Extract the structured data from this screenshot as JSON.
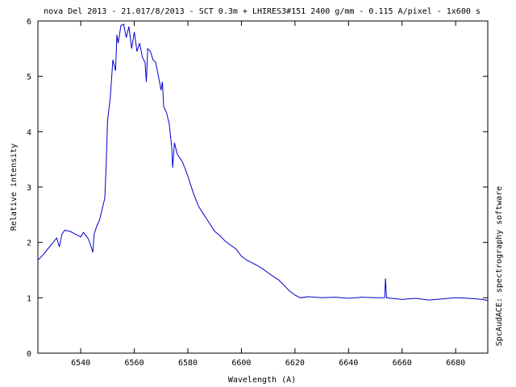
{
  "chart_data": {
    "type": "line",
    "title": "nova Del 2013 - 21.017/8/2013 - SCT 0.3m + LHIRES3#151 2400 g/mm - 0.115 A/pixel - 1x600 s",
    "xlabel": "Wavelength (A)",
    "ylabel": "Relative intensity",
    "side_label": "SpcAudACE: spectrography software",
    "xlim": [
      6524,
      6692
    ],
    "ylim": [
      0,
      6
    ],
    "x_ticks": [
      6540,
      6560,
      6580,
      6600,
      6620,
      6640,
      6660,
      6680
    ],
    "y_ticks": [
      0,
      1,
      2,
      3,
      4,
      5,
      6
    ],
    "grid": false,
    "line_color": "#0000cc",
    "series": [
      {
        "x": [
          6524,
          6526,
          6528,
          6530,
          6531,
          6532,
          6533,
          6534,
          6536,
          6538,
          6540,
          6541,
          6542,
          6543,
          6544,
          6544.5,
          6545,
          6546,
          6547,
          6548,
          6549,
          6549.5,
          6550,
          6551,
          6552,
          6553,
          6553.5,
          6554,
          6555,
          6556,
          6557,
          6558,
          6559,
          6560,
          6561,
          6562,
          6563,
          6564,
          6564.5,
          6565,
          6566,
          6567,
          6568,
          6569,
          6570,
          6570.5,
          6571,
          6572,
          6573,
          6574,
          6574.3,
          6575,
          6576,
          6578,
          6580,
          6582,
          6584,
          6586,
          6588,
          6590,
          6592,
          6594,
          6596,
          6598,
          6600,
          6602,
          6604,
          6606,
          6608,
          6610,
          6612,
          6614,
          6616,
          6618,
          6620,
          6622,
          6625,
          6630,
          6635,
          6640,
          6645,
          6650,
          6653.5,
          6653.8,
          6654.2,
          6656,
          6660,
          6665,
          6670,
          6675,
          6680,
          6685,
          6690,
          6692
        ],
        "y": [
          1.68,
          1.78,
          1.9,
          2.02,
          2.08,
          1.92,
          2.15,
          2.22,
          2.2,
          2.15,
          2.1,
          2.18,
          2.12,
          2.05,
          1.9,
          1.82,
          2.15,
          2.3,
          2.4,
          2.6,
          2.8,
          3.4,
          4.2,
          4.6,
          5.3,
          5.1,
          5.75,
          5.6,
          5.92,
          5.94,
          5.7,
          5.9,
          5.5,
          5.8,
          5.45,
          5.6,
          5.35,
          5.25,
          4.9,
          5.5,
          5.45,
          5.3,
          5.25,
          5.0,
          4.75,
          4.9,
          4.45,
          4.35,
          4.15,
          3.7,
          3.35,
          3.8,
          3.6,
          3.45,
          3.2,
          2.9,
          2.65,
          2.5,
          2.35,
          2.2,
          2.12,
          2.02,
          1.95,
          1.88,
          1.75,
          1.68,
          1.63,
          1.58,
          1.52,
          1.45,
          1.38,
          1.32,
          1.22,
          1.12,
          1.05,
          1.0,
          1.02,
          1.0,
          1.01,
          0.99,
          1.01,
          1.0,
          1.0,
          1.35,
          1.0,
          0.99,
          0.97,
          0.99,
          0.96,
          0.98,
          1.0,
          0.99,
          0.97,
          0.95
        ]
      }
    ]
  }
}
